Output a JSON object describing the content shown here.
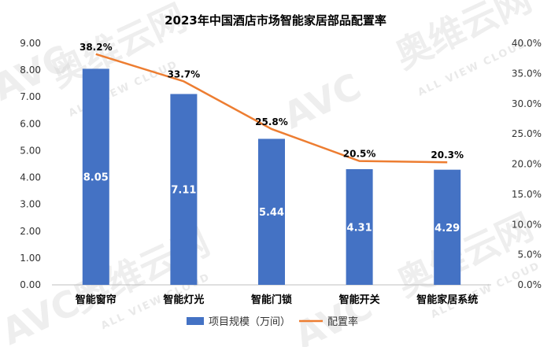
{
  "watermark": {
    "brand": "AVC",
    "cn": "奥维云网",
    "en": "ALL VIEW CLOUD"
  },
  "colors": {
    "bar": "#4472c4",
    "line": "#ed7d31"
  },
  "chart_data": {
    "type": "bar",
    "title": "2023年中国酒店市场智能家居部品配置率",
    "categories": [
      "智能窗帘",
      "智能灯光",
      "智能门锁",
      "智能开关",
      "智能家居系统"
    ],
    "series": [
      {
        "name": "项目规模（万间）",
        "type": "bar",
        "axis": "left",
        "values": [
          8.05,
          7.11,
          5.44,
          4.31,
          4.29
        ],
        "labels": [
          "8.05",
          "7.11",
          "5.44",
          "4.31",
          "4.29"
        ]
      },
      {
        "name": "配置率",
        "type": "line",
        "axis": "right",
        "values": [
          38.2,
          33.7,
          25.8,
          20.5,
          20.3
        ],
        "labels": [
          "38.2%",
          "33.7%",
          "25.8%",
          "20.5%",
          "20.3%"
        ]
      }
    ],
    "y_left": {
      "min": 0,
      "max": 9,
      "step": 1,
      "ticks": [
        "0.00",
        "1.00",
        "2.00",
        "3.00",
        "4.00",
        "5.00",
        "6.00",
        "7.00",
        "8.00",
        "9.00"
      ]
    },
    "y_right": {
      "min": 0,
      "max": 40,
      "step": 5,
      "ticks": [
        "0.0%",
        "5.0%",
        "10.0%",
        "15.0%",
        "20.0%",
        "25.0%",
        "30.0%",
        "35.0%",
        "40.0%"
      ]
    },
    "grid": false,
    "legend_position": "bottom"
  }
}
